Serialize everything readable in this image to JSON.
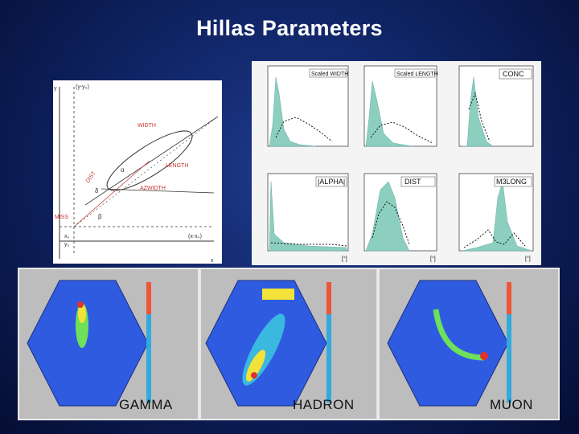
{
  "title": "Hillas Parameters",
  "diagram": {
    "labels": [
      "(y-y₀)",
      "WIDTH",
      "LENGTH",
      "DIST",
      "AZWIDTH",
      "MISS",
      "α",
      "β",
      "δ",
      "(x-x₀)",
      "x₀",
      "y₀",
      "y",
      "x"
    ]
  },
  "plots": {
    "titles": [
      "Scaled WIDTH",
      "Scaled LENGTH",
      "CONC",
      "|ALPHA|",
      "DIST",
      "M3LONG"
    ],
    "unit_label": "[°]"
  },
  "cameras": [
    {
      "label": "GAMMA"
    },
    {
      "label": "HADRON"
    },
    {
      "label": "MUON"
    }
  ],
  "colors": {
    "background": "#102566",
    "fill_histogram": "#8ccfbf",
    "title_text": "#ffffff"
  }
}
